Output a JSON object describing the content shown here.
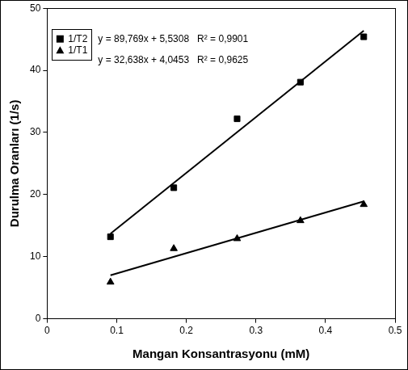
{
  "chart_data": {
    "type": "scatter",
    "x_label": "Mangan Konsantrasyonu (mM)",
    "y_label": "Durulma Oranları (1/s)",
    "x": [
      0.091,
      0.182,
      0.273,
      0.364,
      0.455
    ],
    "series": [
      {
        "name": "1/T2",
        "color": "#000000",
        "marker": "square",
        "values": [
          13.2,
          21.1,
          32.2,
          38.1,
          45.4
        ],
        "trend": {
          "slope": 89.769,
          "intercept": 5.5308,
          "label": "y = 89,769x + 5,5308   R² = 0,9901"
        }
      },
      {
        "name": "1/T1",
        "color": "#000000",
        "marker": "triangle",
        "values": [
          5.9,
          11.3,
          12.9,
          15.8,
          18.4
        ],
        "trend": {
          "slope": 32.638,
          "intercept": 4.0453,
          "label": "y = 32,638x + 4,0453   R² = 0,9625"
        }
      }
    ],
    "xlim": [
      0,
      0.5
    ],
    "xticks": [
      0,
      0.1,
      0.2,
      0.3,
      0.4,
      0.5
    ],
    "ylim": [
      0,
      50
    ],
    "yticks": [
      0,
      10,
      20,
      30,
      40,
      50
    ],
    "grid": false,
    "legend": "upper left"
  }
}
